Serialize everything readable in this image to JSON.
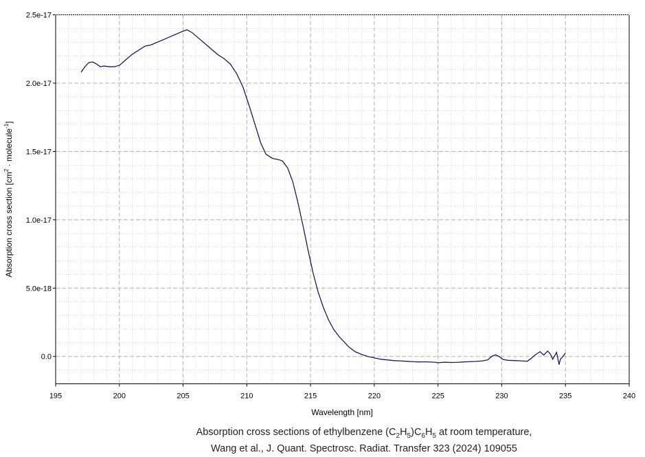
{
  "chart_data": {
    "type": "line",
    "title": "",
    "xlabel": "Wavelength [nm]",
    "ylabel_main": "Absorption cross section [cm",
    "ylabel_sup1": "2",
    "ylabel_mid": " · molecule",
    "ylabel_sup2": "-1",
    "ylabel_end": "]",
    "xlim": [
      195,
      240
    ],
    "ylim": [
      -2e-18,
      2.5e-17
    ],
    "x_ticks": [
      195,
      200,
      205,
      210,
      215,
      220,
      225,
      230,
      235,
      240
    ],
    "y_ticks": [
      0,
      5e-18,
      1e-17,
      1.5e-17,
      2e-17,
      2.5e-17
    ],
    "y_tick_labels": [
      "0.0",
      "5.0e-18",
      "1.0e-17",
      "1.5e-17",
      "2.0e-17",
      "2.5e-17"
    ],
    "grid": true,
    "line_color": "#1a1a5e",
    "series": [
      {
        "x": [
          197.0,
          197.3,
          197.6,
          197.9,
          198.2,
          198.5,
          198.8,
          199.2,
          199.6,
          200.0,
          200.5,
          201.0,
          201.5,
          202.0,
          202.5,
          203.0,
          203.5,
          204.0,
          204.5,
          205.0,
          205.3,
          205.7,
          206.2,
          206.7,
          207.2,
          207.7,
          208.2,
          208.7,
          209.2,
          209.7,
          210.2,
          210.7,
          211.1,
          211.5,
          212.0,
          212.5,
          212.8,
          213.2,
          213.6,
          214.0,
          214.4,
          214.8,
          215.2,
          215.6,
          216.0,
          216.4,
          216.8,
          217.2,
          217.6,
          218.0,
          218.5,
          219.0,
          219.5,
          220.0,
          220.5,
          221.0,
          221.5,
          222.0,
          222.5,
          223.0,
          223.5,
          224.0,
          224.5,
          224.8,
          225.0,
          225.5,
          226.0,
          226.5,
          227.0,
          227.5,
          228.0,
          228.5,
          228.9,
          229.2,
          229.5,
          229.8,
          230.1,
          230.5,
          231.0,
          231.5,
          232.0,
          232.3,
          232.6,
          233.0,
          233.3,
          233.6,
          233.8,
          234.0,
          234.3,
          234.5,
          234.6,
          234.8,
          235.0
        ],
        "y": [
          2.08e-17,
          2.12e-17,
          2.15e-17,
          2.155e-17,
          2.14e-17,
          2.12e-17,
          2.125e-17,
          2.12e-17,
          2.12e-17,
          2.13e-17,
          2.17e-17,
          2.21e-17,
          2.24e-17,
          2.27e-17,
          2.28e-17,
          2.3e-17,
          2.32e-17,
          2.34e-17,
          2.36e-17,
          2.38e-17,
          2.39e-17,
          2.37e-17,
          2.33e-17,
          2.29e-17,
          2.25e-17,
          2.21e-17,
          2.18e-17,
          2.14e-17,
          2.07e-17,
          1.97e-17,
          1.83e-17,
          1.68e-17,
          1.56e-17,
          1.48e-17,
          1.45e-17,
          1.44e-17,
          1.43e-17,
          1.38e-17,
          1.28e-17,
          1.13e-17,
          9.6e-18,
          7.8e-18,
          6.1e-18,
          4.7e-18,
          3.6e-18,
          2.7e-18,
          2e-18,
          1.5e-18,
          1.1e-18,
          7e-19,
          3.5e-19,
          1.5e-19,
          0,
          -1e-19,
          -2e-19,
          -2.5e-19,
          -3e-19,
          -3.2e-19,
          -3.5e-19,
          -3.8e-19,
          -4e-19,
          -3.9e-19,
          -4.1e-19,
          -4.3e-19,
          -4.6e-19,
          -4.2e-19,
          -4.4e-19,
          -4.3e-19,
          -4e-19,
          -3.8e-19,
          -3.6e-19,
          -3.2e-19,
          -2.5e-19,
          0,
          1.2e-19,
          0,
          -2.2e-19,
          -2.8e-19,
          -3e-19,
          -3.2e-19,
          -3.5e-19,
          -1.5e-19,
          1e-19,
          3.5e-19,
          1e-19,
          4e-19,
          2e-19,
          -2e-19,
          3e-19,
          -6e-19,
          -2e-19,
          0,
          2.5e-19
        ]
      }
    ]
  },
  "caption": {
    "line1_pre": "Absorption cross sections of ethylbenzene (C",
    "sub1": "2",
    "line1_mid1": "H",
    "sub2": "5",
    "line1_mid2": ")C",
    "sub3": "6",
    "line1_mid3": "H",
    "sub4": "5",
    "line1_post": " at room temperature,",
    "line2": "Wang et al., J. Quant. Spectrosc. Radiat. Transfer 323 (2024) 109055"
  }
}
